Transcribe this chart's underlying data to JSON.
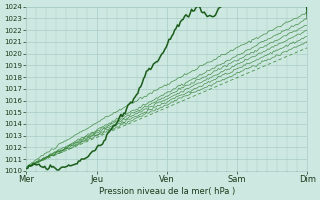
{
  "bg_color": "#cce8e0",
  "plot_bg_color": "#cce8e0",
  "grid_color": "#a8ccc4",
  "line_color_dark": "#1a5c1a",
  "line_color_med": "#2e7d2e",
  "line_color_dashed": "#3a8a3a",
  "ylabel_text": "Pression niveau de la mer( hPa )",
  "x_labels": [
    "Mer",
    "Jeu",
    "Ven",
    "Sam",
    "Dim"
  ],
  "x_tick_pos": [
    0,
    1,
    2,
    3,
    4
  ],
  "y_min": 1010,
  "y_max": 1024,
  "y_ticks": [
    1010,
    1011,
    1012,
    1013,
    1014,
    1015,
    1016,
    1017,
    1018,
    1019,
    1020,
    1021,
    1022,
    1023,
    1024
  ],
  "n_points": 200,
  "figwidth": 3.2,
  "figheight": 2.0,
  "dpi": 100
}
